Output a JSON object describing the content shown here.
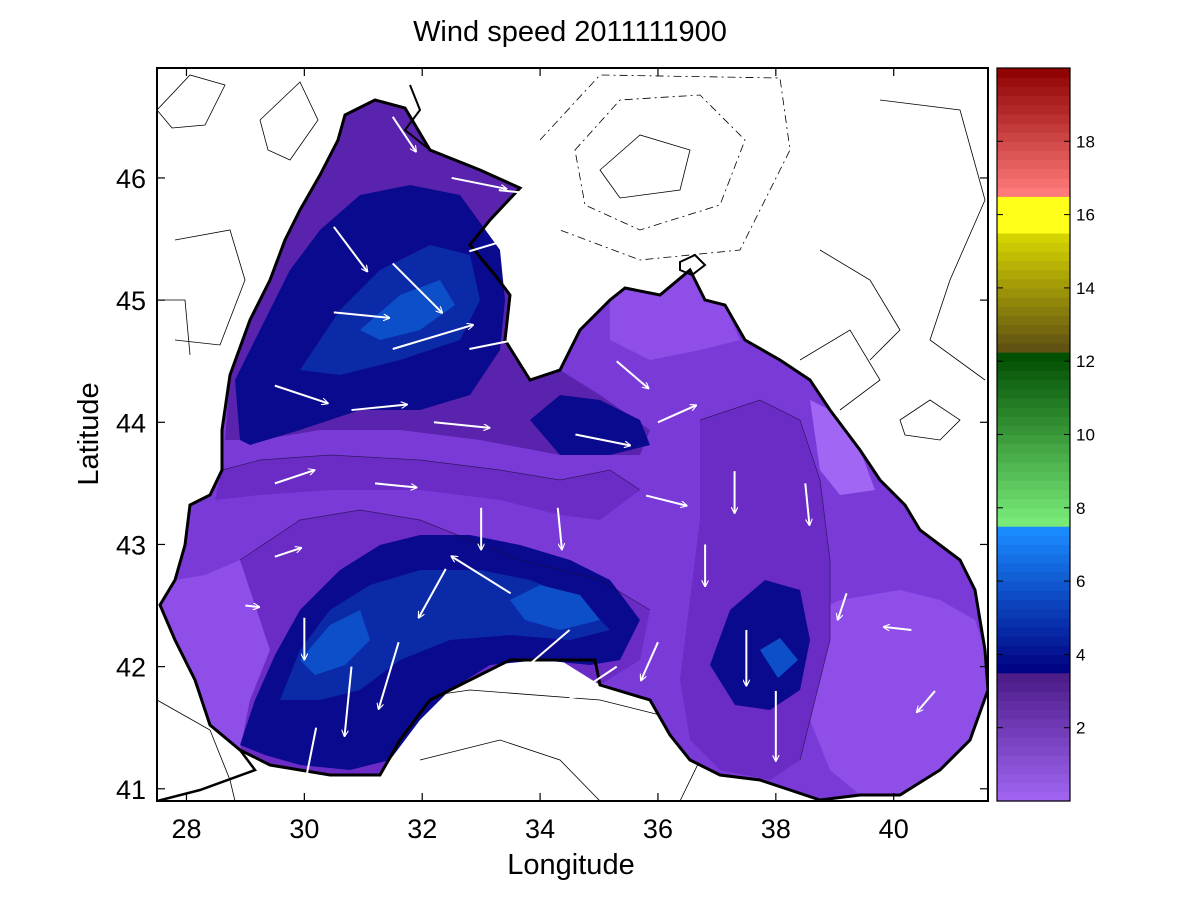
{
  "chart_data": {
    "type": "heatmap",
    "title": "Wind speed 2011111900",
    "xlabel": "Longitude",
    "ylabel": "Latitude",
    "xlim": [
      27.5,
      41.6
    ],
    "ylim": [
      40.9,
      46.9
    ],
    "xticks": [
      28,
      30,
      32,
      34,
      36,
      38,
      40
    ],
    "yticks": [
      41,
      42,
      43,
      44,
      45,
      46
    ],
    "grid": false,
    "colorbar": {
      "range": [
        0,
        20
      ],
      "ticks": [
        2,
        4,
        6,
        8,
        10,
        12,
        14,
        16,
        18
      ],
      "colors": {
        "purple_low": "#a266f4",
        "purple_high": "#4a1a86",
        "blue_low": "#000080",
        "blue_high": "#1a8cff",
        "green_low": "#7ef27e",
        "green_high": "#004d00",
        "olive_low": "#5a4a12",
        "olive_high": "#d8d800",
        "yellow": "#ffff1a",
        "red_low": "#ff7a7a",
        "red_high": "#8c0000"
      }
    },
    "land_color": "#ffffff",
    "coastline_color": "#000000",
    "arrow_color": "#ffffff",
    "vectors": [
      {
        "lon": 31.5,
        "lat": 46.5,
        "u": 0.6,
        "v": -0.9,
        "speed": 3
      },
      {
        "lon": 32.5,
        "lat": 46.0,
        "u": 1.0,
        "v": -0.2,
        "speed": 4
      },
      {
        "lon": 33.3,
        "lat": 45.9,
        "u": 1.0,
        "v": -0.1,
        "speed": 4
      },
      {
        "lon": 30.5,
        "lat": 45.6,
        "u": 0.6,
        "v": -0.8,
        "speed": 4
      },
      {
        "lon": 31.5,
        "lat": 45.3,
        "u": 0.7,
        "v": -0.7,
        "speed": 5
      },
      {
        "lon": 32.8,
        "lat": 45.4,
        "u": 1.0,
        "v": 0.3,
        "speed": 5
      },
      {
        "lon": 30.5,
        "lat": 44.9,
        "u": 1.0,
        "v": -0.1,
        "speed": 4
      },
      {
        "lon": 31.5,
        "lat": 44.6,
        "u": 1.0,
        "v": 0.3,
        "speed": 6
      },
      {
        "lon": 32.8,
        "lat": 44.6,
        "u": 1.0,
        "v": 0.2,
        "speed": 5
      },
      {
        "lon": 29.5,
        "lat": 44.3,
        "u": 0.9,
        "v": -0.3,
        "speed": 4
      },
      {
        "lon": 30.8,
        "lat": 44.1,
        "u": 1.0,
        "v": 0.1,
        "speed": 4
      },
      {
        "lon": 32.2,
        "lat": 44.0,
        "u": 1.0,
        "v": -0.1,
        "speed": 4
      },
      {
        "lon": 34.6,
        "lat": 43.9,
        "u": 1.0,
        "v": -0.2,
        "speed": 4
      },
      {
        "lon": 36.0,
        "lat": 44.0,
        "u": 0.9,
        "v": 0.4,
        "speed": 3
      },
      {
        "lon": 35.3,
        "lat": 44.5,
        "u": 0.7,
        "v": -0.6,
        "speed": 3
      },
      {
        "lon": 29.5,
        "lat": 43.5,
        "u": 0.9,
        "v": 0.3,
        "speed": 3
      },
      {
        "lon": 31.2,
        "lat": 43.5,
        "u": 1.0,
        "v": -0.1,
        "speed": 3
      },
      {
        "lon": 33.0,
        "lat": 43.3,
        "u": 0.0,
        "v": -1.0,
        "speed": 3
      },
      {
        "lon": 34.3,
        "lat": 43.3,
        "u": 0.1,
        "v": -1.0,
        "speed": 3
      },
      {
        "lon": 35.8,
        "lat": 43.4,
        "u": 0.8,
        "v": -0.2,
        "speed": 3
      },
      {
        "lon": 29.5,
        "lat": 42.9,
        "u": 0.9,
        "v": 0.3,
        "speed": 2
      },
      {
        "lon": 30.0,
        "lat": 42.4,
        "u": 0.0,
        "v": -1.0,
        "speed": 3
      },
      {
        "lon": 30.8,
        "lat": 42.0,
        "u": -0.1,
        "v": -1.0,
        "speed": 5
      },
      {
        "lon": 31.6,
        "lat": 42.2,
        "u": -0.3,
        "v": -1.0,
        "speed": 5
      },
      {
        "lon": 32.4,
        "lat": 42.8,
        "u": -0.5,
        "v": -0.9,
        "speed": 4
      },
      {
        "lon": 33.5,
        "lat": 42.6,
        "u": -0.8,
        "v": 0.5,
        "speed": 5
      },
      {
        "lon": 34.5,
        "lat": 42.3,
        "u": -0.7,
        "v": -0.6,
        "speed": 6
      },
      {
        "lon": 35.3,
        "lat": 42.0,
        "u": -0.6,
        "v": -0.4,
        "speed": 4
      },
      {
        "lon": 36.0,
        "lat": 42.2,
        "u": -0.4,
        "v": -0.9,
        "speed": 3
      },
      {
        "lon": 36.8,
        "lat": 43.0,
        "u": 0.0,
        "v": -1.0,
        "speed": 3
      },
      {
        "lon": 37.5,
        "lat": 42.3,
        "u": 0.0,
        "v": -1.0,
        "speed": 4
      },
      {
        "lon": 38.0,
        "lat": 41.8,
        "u": 0.0,
        "v": -1.0,
        "speed": 5
      },
      {
        "lon": 37.3,
        "lat": 43.6,
        "u": 0.0,
        "v": -1.0,
        "speed": 3
      },
      {
        "lon": 38.5,
        "lat": 43.5,
        "u": 0.1,
        "v": -1.0,
        "speed": 3
      },
      {
        "lon": 39.2,
        "lat": 42.6,
        "u": -0.3,
        "v": -0.9,
        "speed": 2
      },
      {
        "lon": 40.3,
        "lat": 42.3,
        "u": -0.9,
        "v": 0.1,
        "speed": 2
      },
      {
        "lon": 40.7,
        "lat": 41.8,
        "u": -0.6,
        "v": -0.7,
        "speed": 2
      },
      {
        "lon": 30.2,
        "lat": 41.5,
        "u": -0.2,
        "v": -1.0,
        "speed": 4
      },
      {
        "lon": 29.0,
        "lat": 42.5,
        "u": 0.9,
        "v": -0.1,
        "speed": 1
      },
      {
        "lon": 33.6,
        "lat": 41.6,
        "u": -0.9,
        "v": -0.4,
        "speed": 3
      }
    ]
  }
}
